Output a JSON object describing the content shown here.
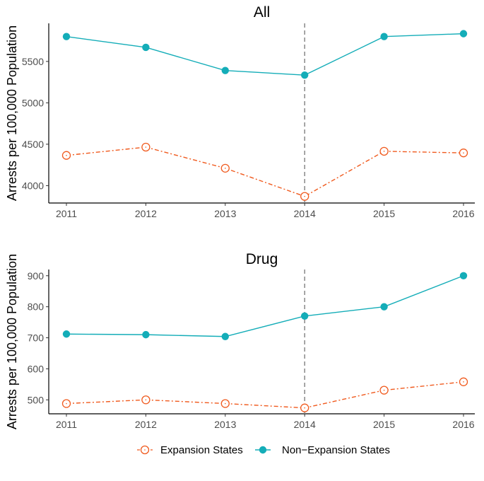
{
  "chart_data": [
    {
      "type": "line",
      "title": "All",
      "ylabel": "Arrests per 100,000 Population",
      "xlabel": "",
      "categories": [
        "2011",
        "2012",
        "2013",
        "2014",
        "2015",
        "2016"
      ],
      "x": [
        2011,
        2012,
        2013,
        2014,
        2015,
        2016
      ],
      "ylim": [
        3790,
        5960
      ],
      "yticks": [
        4000,
        4500,
        5000,
        5500
      ],
      "vline": 2014,
      "series": [
        {
          "name": "Expansion States",
          "values": [
            4365,
            4465,
            4210,
            3870,
            4415,
            4395
          ],
          "color": "#f05a1e",
          "style": "dashdot",
          "marker": "open-circle"
        },
        {
          "name": "Non−Expansion States",
          "values": [
            5800,
            5670,
            5390,
            5335,
            5800,
            5835
          ],
          "color": "#14adb8",
          "style": "solid",
          "marker": "filled-circle"
        }
      ]
    },
    {
      "type": "line",
      "title": "Drug",
      "ylabel": "Arrests per 100,000 Population",
      "xlabel": "",
      "categories": [
        "2011",
        "2012",
        "2013",
        "2014",
        "2015",
        "2016"
      ],
      "x": [
        2011,
        2012,
        2013,
        2014,
        2015,
        2016
      ],
      "ylim": [
        455,
        920
      ],
      "yticks": [
        500,
        600,
        700,
        800,
        900
      ],
      "vline": 2014,
      "series": [
        {
          "name": "Expansion States",
          "values": [
            488,
            500,
            488,
            474,
            531,
            558
          ],
          "color": "#f05a1e",
          "style": "dashdot",
          "marker": "open-circle"
        },
        {
          "name": "Non−Expansion States",
          "values": [
            712,
            710,
            704,
            770,
            800,
            900
          ],
          "color": "#14adb8",
          "style": "solid",
          "marker": "filled-circle"
        }
      ]
    }
  ],
  "legend": {
    "position": "bottom",
    "items": [
      {
        "label": "Expansion States",
        "icon": "open-circle-dashdot-line-icon",
        "color": "#f05a1e"
      },
      {
        "label": "Non−Expansion States",
        "icon": "filled-circle-solid-line-icon",
        "color": "#14adb8"
      }
    ]
  }
}
